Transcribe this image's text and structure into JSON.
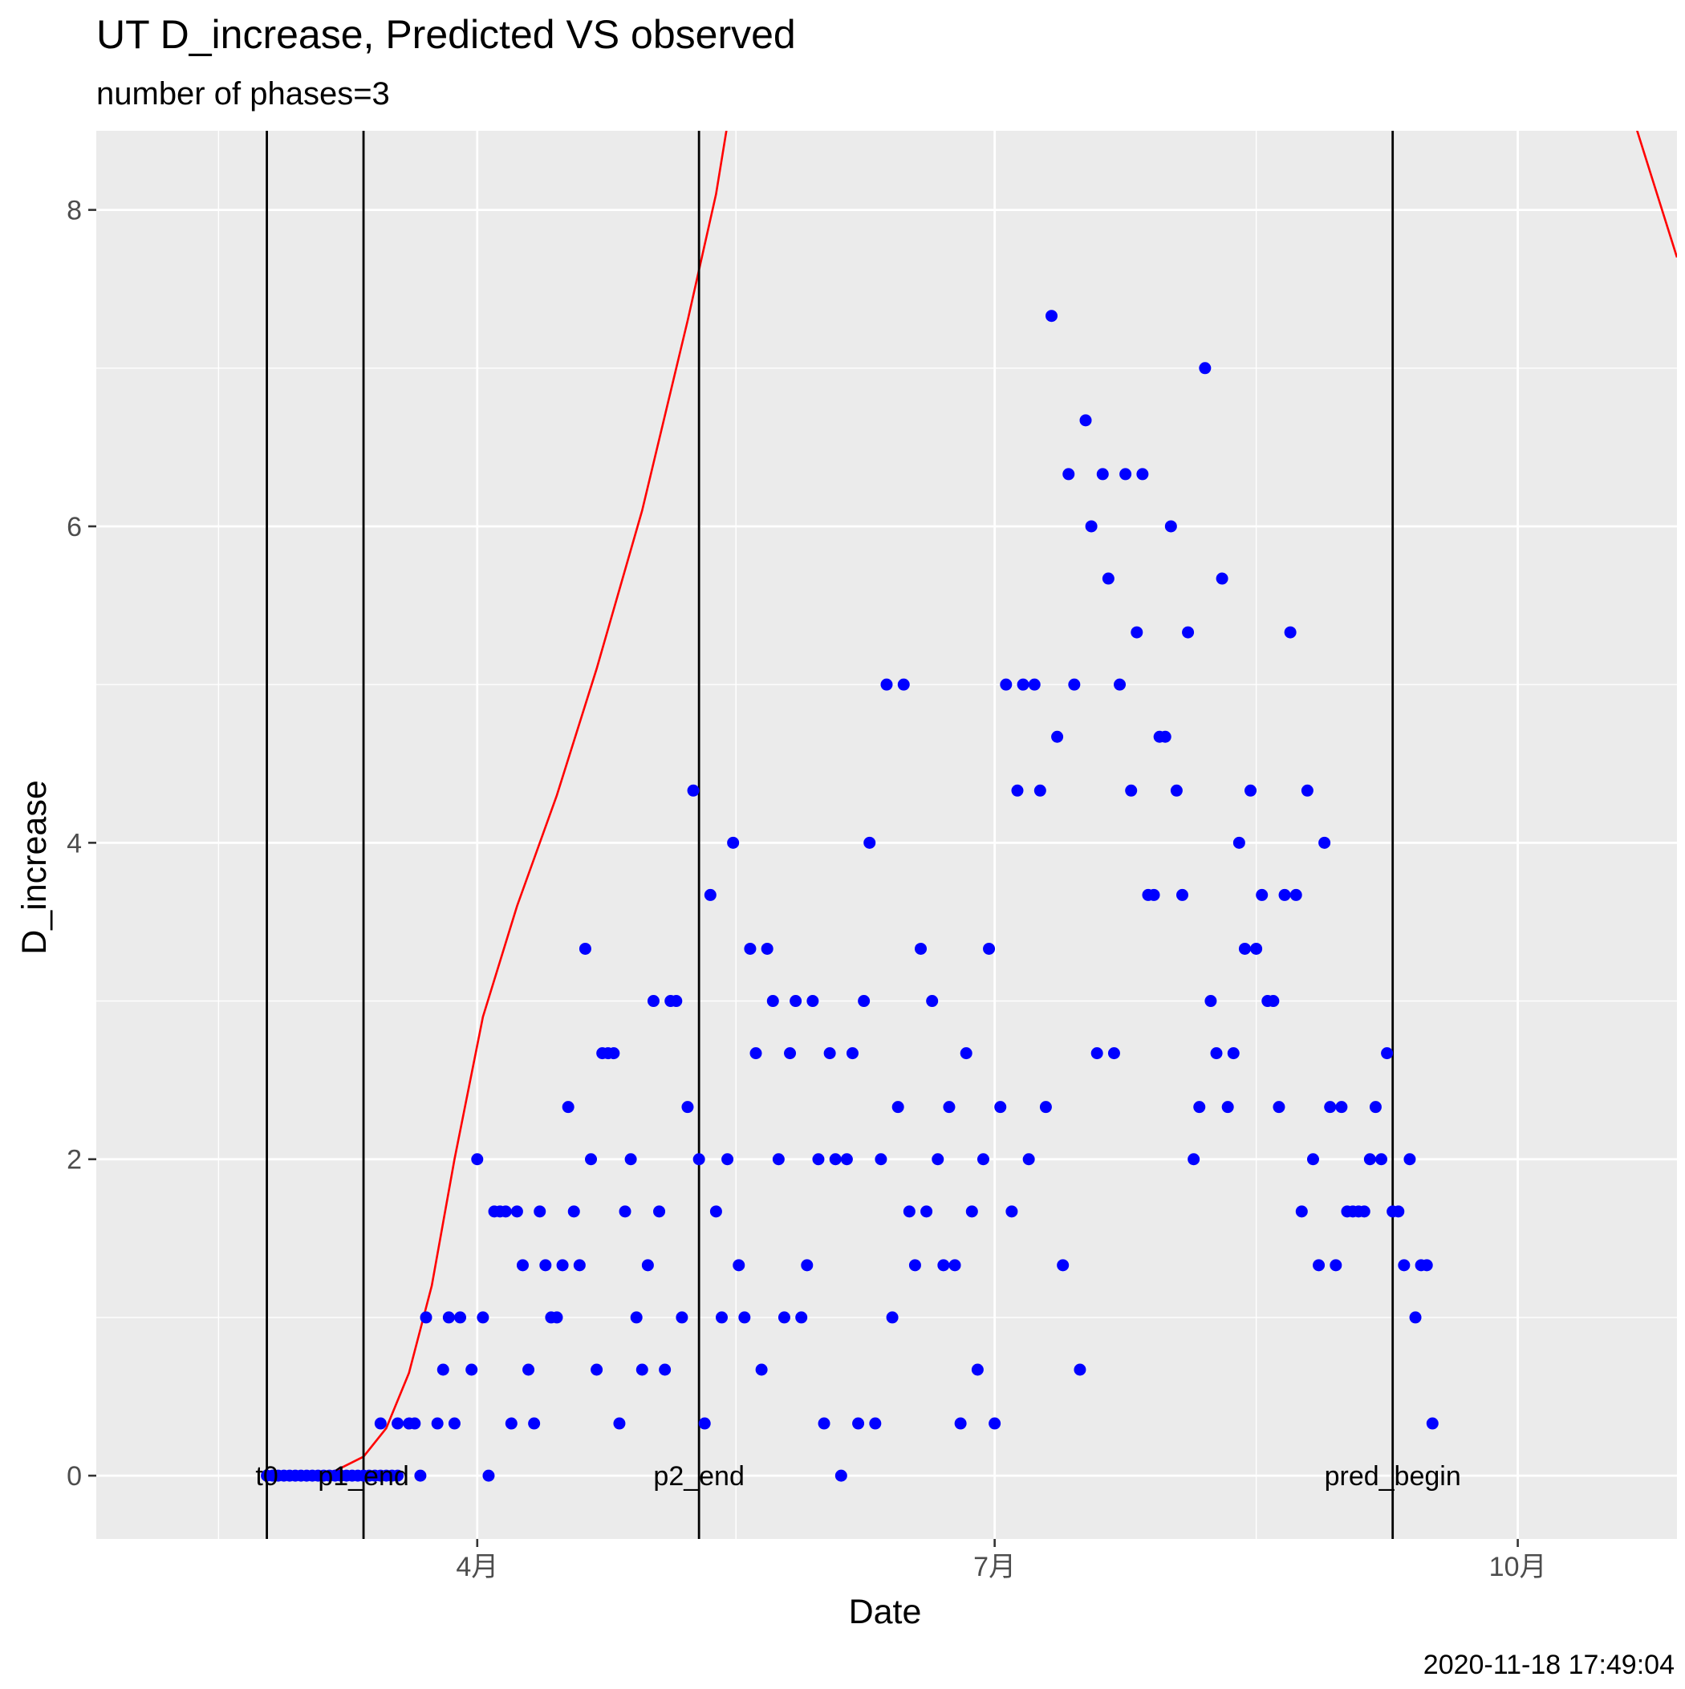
{
  "chart_data": {
    "type": "scatter",
    "title": "UT D_increase, Predicted VS observed",
    "subtitle": "number of phases=3",
    "xlabel": "Date",
    "ylabel": "D_increase",
    "caption": "2020-11-18 17:49:04",
    "x_axis": {
      "type": "date",
      "range": [
        "2020-01-25",
        "2020-10-29"
      ],
      "ticks": [
        {
          "date": "2020-04-01",
          "label": "4月"
        },
        {
          "date": "2020-07-01",
          "label": "7月"
        },
        {
          "date": "2020-10-01",
          "label": "10月"
        }
      ]
    },
    "y_axis": {
      "range": [
        -0.4,
        8.5
      ],
      "ticks": [
        0,
        2,
        4,
        6,
        8
      ]
    },
    "grid": true,
    "legend": "none",
    "colors": {
      "panel": "#EBEBEB",
      "grid": "#FFFFFF",
      "observed": "#0000FF",
      "predicted": "#FF0000",
      "vline": "#000000",
      "axis_text": "#4D4D4D"
    },
    "vlines": [
      {
        "date": "2020-02-24",
        "label": "t0"
      },
      {
        "date": "2020-03-12",
        "label": "p1_end"
      },
      {
        "date": "2020-05-10",
        "label": "p2_end"
      },
      {
        "date": "2020-09-09",
        "label": "pred_begin"
      }
    ],
    "series": [
      {
        "kind": "points",
        "points": [
          [
            "2020-02-24",
            0
          ],
          [
            "2020-02-25",
            0
          ],
          [
            "2020-02-26",
            0
          ],
          [
            "2020-02-27",
            0
          ],
          [
            "2020-02-28",
            0
          ],
          [
            "2020-02-29",
            0
          ],
          [
            "2020-03-01",
            0
          ],
          [
            "2020-03-02",
            0
          ],
          [
            "2020-03-03",
            0
          ],
          [
            "2020-03-04",
            0
          ],
          [
            "2020-03-05",
            0
          ],
          [
            "2020-03-06",
            0
          ],
          [
            "2020-03-07",
            0
          ],
          [
            "2020-03-08",
            0
          ],
          [
            "2020-03-09",
            0
          ],
          [
            "2020-03-10",
            0
          ],
          [
            "2020-03-11",
            0
          ],
          [
            "2020-03-12",
            0
          ],
          [
            "2020-03-13",
            0
          ],
          [
            "2020-03-14",
            0
          ],
          [
            "2020-03-15",
            0
          ],
          [
            "2020-03-16",
            0
          ],
          [
            "2020-03-17",
            0
          ],
          [
            "2020-03-18",
            0
          ],
          [
            "2020-03-15",
            0.33
          ],
          [
            "2020-03-18",
            0.33
          ],
          [
            "2020-03-20",
            0.33
          ],
          [
            "2020-03-21",
            0.33
          ],
          [
            "2020-03-22",
            0
          ],
          [
            "2020-03-23",
            1
          ],
          [
            "2020-03-25",
            0.33
          ],
          [
            "2020-03-26",
            0.67
          ],
          [
            "2020-03-27",
            1
          ],
          [
            "2020-03-28",
            0.33
          ],
          [
            "2020-03-29",
            1
          ],
          [
            "2020-03-31",
            0.67
          ],
          [
            "2020-04-01",
            2
          ],
          [
            "2020-04-02",
            1
          ],
          [
            "2020-04-03",
            0
          ],
          [
            "2020-04-04",
            1.67
          ],
          [
            "2020-04-05",
            1.67
          ],
          [
            "2020-04-06",
            1.67
          ],
          [
            "2020-04-07",
            0.33
          ],
          [
            "2020-04-08",
            1.67
          ],
          [
            "2020-04-09",
            1.33
          ],
          [
            "2020-04-10",
            0.67
          ],
          [
            "2020-04-11",
            0.33
          ],
          [
            "2020-04-12",
            1.67
          ],
          [
            "2020-04-13",
            1.33
          ],
          [
            "2020-04-14",
            1
          ],
          [
            "2020-04-15",
            1
          ],
          [
            "2020-04-16",
            1.33
          ],
          [
            "2020-04-17",
            2.33
          ],
          [
            "2020-04-18",
            1.67
          ],
          [
            "2020-04-19",
            1.33
          ],
          [
            "2020-04-20",
            3.33
          ],
          [
            "2020-04-21",
            2
          ],
          [
            "2020-04-22",
            0.67
          ],
          [
            "2020-04-23",
            2.67
          ],
          [
            "2020-04-24",
            2.67
          ],
          [
            "2020-04-25",
            2.67
          ],
          [
            "2020-04-26",
            0.33
          ],
          [
            "2020-04-27",
            1.67
          ],
          [
            "2020-04-28",
            2
          ],
          [
            "2020-04-29",
            1
          ],
          [
            "2020-04-30",
            0.67
          ],
          [
            "2020-05-01",
            1.33
          ],
          [
            "2020-05-02",
            3
          ],
          [
            "2020-05-03",
            1.67
          ],
          [
            "2020-05-04",
            0.67
          ],
          [
            "2020-05-05",
            3
          ],
          [
            "2020-05-06",
            3
          ],
          [
            "2020-05-07",
            1
          ],
          [
            "2020-05-08",
            2.33
          ],
          [
            "2020-05-09",
            4.33
          ],
          [
            "2020-05-10",
            2
          ],
          [
            "2020-05-11",
            0.33
          ],
          [
            "2020-05-12",
            3.67
          ],
          [
            "2020-05-13",
            1.67
          ],
          [
            "2020-05-14",
            1
          ],
          [
            "2020-05-15",
            2
          ],
          [
            "2020-05-16",
            4
          ],
          [
            "2020-05-17",
            1.33
          ],
          [
            "2020-05-18",
            1
          ],
          [
            "2020-05-19",
            3.33
          ],
          [
            "2020-05-20",
            2.67
          ],
          [
            "2020-05-21",
            0.67
          ],
          [
            "2020-05-22",
            3.33
          ],
          [
            "2020-05-23",
            3
          ],
          [
            "2020-05-24",
            2
          ],
          [
            "2020-05-25",
            1
          ],
          [
            "2020-05-26",
            2.67
          ],
          [
            "2020-05-27",
            3
          ],
          [
            "2020-05-28",
            1
          ],
          [
            "2020-05-29",
            1.33
          ],
          [
            "2020-05-30",
            3
          ],
          [
            "2020-05-31",
            2
          ],
          [
            "2020-06-01",
            0.33
          ],
          [
            "2020-06-02",
            2.67
          ],
          [
            "2020-06-03",
            2
          ],
          [
            "2020-06-04",
            0
          ],
          [
            "2020-06-05",
            2
          ],
          [
            "2020-06-06",
            2.67
          ],
          [
            "2020-06-07",
            0.33
          ],
          [
            "2020-06-08",
            3
          ],
          [
            "2020-06-09",
            4
          ],
          [
            "2020-06-10",
            0.33
          ],
          [
            "2020-06-11",
            2
          ],
          [
            "2020-06-12",
            5
          ],
          [
            "2020-06-13",
            1
          ],
          [
            "2020-06-14",
            2.33
          ],
          [
            "2020-06-15",
            5
          ],
          [
            "2020-06-16",
            1.67
          ],
          [
            "2020-06-17",
            1.33
          ],
          [
            "2020-06-18",
            3.33
          ],
          [
            "2020-06-19",
            1.67
          ],
          [
            "2020-06-20",
            3
          ],
          [
            "2020-06-21",
            2
          ],
          [
            "2020-06-22",
            1.33
          ],
          [
            "2020-06-23",
            2.33
          ],
          [
            "2020-06-24",
            1.33
          ],
          [
            "2020-06-25",
            0.33
          ],
          [
            "2020-06-26",
            2.67
          ],
          [
            "2020-06-27",
            1.67
          ],
          [
            "2020-06-28",
            0.67
          ],
          [
            "2020-06-29",
            2
          ],
          [
            "2020-06-30",
            3.33
          ],
          [
            "2020-07-01",
            0.33
          ],
          [
            "2020-07-02",
            2.33
          ],
          [
            "2020-07-03",
            5
          ],
          [
            "2020-07-04",
            1.67
          ],
          [
            "2020-07-05",
            4.33
          ],
          [
            "2020-07-06",
            5
          ],
          [
            "2020-07-07",
            2
          ],
          [
            "2020-07-08",
            5
          ],
          [
            "2020-07-09",
            4.33
          ],
          [
            "2020-07-10",
            2.33
          ],
          [
            "2020-07-11",
            7.33
          ],
          [
            "2020-07-12",
            4.67
          ],
          [
            "2020-07-13",
            1.33
          ],
          [
            "2020-07-14",
            6.33
          ],
          [
            "2020-07-15",
            5
          ],
          [
            "2020-07-16",
            0.67
          ],
          [
            "2020-07-17",
            6.67
          ],
          [
            "2020-07-18",
            6
          ],
          [
            "2020-07-19",
            2.67
          ],
          [
            "2020-07-20",
            6.33
          ],
          [
            "2020-07-21",
            5.67
          ],
          [
            "2020-07-22",
            2.67
          ],
          [
            "2020-07-23",
            5
          ],
          [
            "2020-07-24",
            6.33
          ],
          [
            "2020-07-25",
            4.33
          ],
          [
            "2020-07-26",
            5.33
          ],
          [
            "2020-07-27",
            6.33
          ],
          [
            "2020-07-28",
            3.67
          ],
          [
            "2020-07-29",
            3.67
          ],
          [
            "2020-07-30",
            4.67
          ],
          [
            "2020-07-31",
            4.67
          ],
          [
            "2020-08-01",
            6
          ],
          [
            "2020-08-02",
            4.33
          ],
          [
            "2020-08-03",
            3.67
          ],
          [
            "2020-08-04",
            5.33
          ],
          [
            "2020-08-05",
            2
          ],
          [
            "2020-08-06",
            2.33
          ],
          [
            "2020-08-07",
            7
          ],
          [
            "2020-08-08",
            3
          ],
          [
            "2020-08-09",
            2.67
          ],
          [
            "2020-08-10",
            5.67
          ],
          [
            "2020-08-11",
            2.33
          ],
          [
            "2020-08-12",
            2.67
          ],
          [
            "2020-08-13",
            4
          ],
          [
            "2020-08-14",
            3.33
          ],
          [
            "2020-08-15",
            4.33
          ],
          [
            "2020-08-16",
            3.33
          ],
          [
            "2020-08-17",
            3.67
          ],
          [
            "2020-08-18",
            3
          ],
          [
            "2020-08-19",
            3
          ],
          [
            "2020-08-20",
            2.33
          ],
          [
            "2020-08-21",
            3.67
          ],
          [
            "2020-08-22",
            5.33
          ],
          [
            "2020-08-23",
            3.67
          ],
          [
            "2020-08-24",
            1.67
          ],
          [
            "2020-08-25",
            4.33
          ],
          [
            "2020-08-26",
            2
          ],
          [
            "2020-08-27",
            1.33
          ],
          [
            "2020-08-28",
            4
          ],
          [
            "2020-08-29",
            2.33
          ],
          [
            "2020-08-30",
            1.33
          ],
          [
            "2020-08-31",
            2.33
          ],
          [
            "2020-09-01",
            1.67
          ],
          [
            "2020-09-02",
            1.67
          ],
          [
            "2020-09-03",
            1.67
          ],
          [
            "2020-09-04",
            1.67
          ],
          [
            "2020-09-05",
            2
          ],
          [
            "2020-09-06",
            2.33
          ],
          [
            "2020-09-07",
            2
          ],
          [
            "2020-09-08",
            2.67
          ],
          [
            "2020-09-09",
            1.67
          ],
          [
            "2020-09-10",
            1.67
          ],
          [
            "2020-09-11",
            1.33
          ],
          [
            "2020-09-12",
            2
          ],
          [
            "2020-09-13",
            1
          ],
          [
            "2020-09-14",
            1.33
          ],
          [
            "2020-09-15",
            1.33
          ],
          [
            "2020-09-16",
            0.33
          ]
        ]
      },
      {
        "kind": "line",
        "points": [
          [
            "2020-03-02",
            0
          ],
          [
            "2020-03-07",
            0.03
          ],
          [
            "2020-03-12",
            0.12
          ],
          [
            "2020-03-16",
            0.3
          ],
          [
            "2020-03-20",
            0.65
          ],
          [
            "2020-03-24",
            1.2
          ],
          [
            "2020-03-28",
            2.0
          ],
          [
            "2020-04-02",
            2.9
          ],
          [
            "2020-04-08",
            3.6
          ],
          [
            "2020-04-15",
            4.3
          ],
          [
            "2020-04-22",
            5.1
          ],
          [
            "2020-04-30",
            6.1
          ],
          [
            "2020-05-08",
            7.3
          ],
          [
            "2020-05-13",
            8.1
          ],
          [
            "2020-05-18",
            9.2
          ],
          [
            "2020-10-18",
            9.1
          ],
          [
            "2020-10-22",
            8.5
          ],
          [
            "2020-10-29",
            7.7
          ]
        ]
      }
    ]
  }
}
